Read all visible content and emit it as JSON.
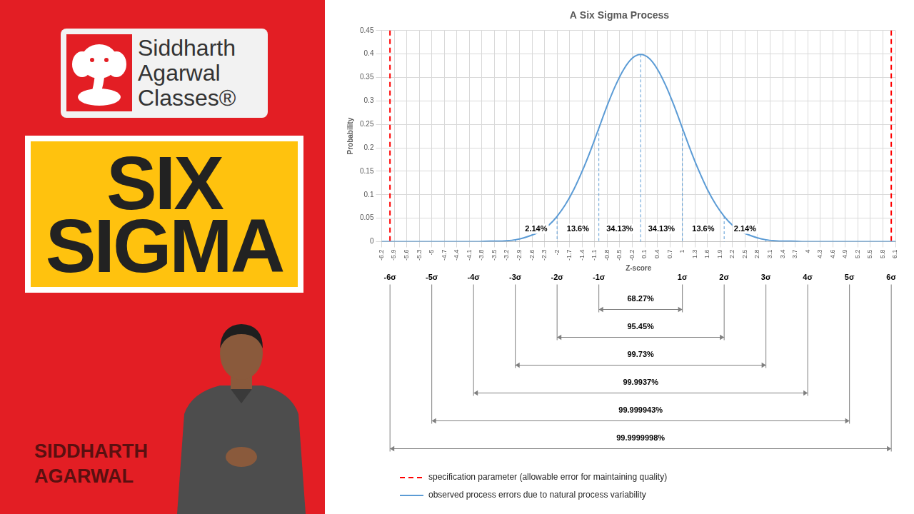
{
  "page": {
    "logo": [
      "Siddharth",
      "Agarwal",
      "Classes®"
    ],
    "headline": [
      "SIX",
      "SIGMA"
    ],
    "presenter": [
      "SIDDHARTH",
      "AGARWAL"
    ]
  },
  "chart_data": {
    "type": "line",
    "title": "A Six Sigma Process",
    "x_label": "Z-score",
    "y_label": "Probability",
    "x": [
      -6.2,
      -5,
      -4,
      -3.6,
      -3.4,
      -3.2,
      -3,
      -2.8,
      -2.6,
      -2.4,
      -2.2,
      -2,
      -1.8,
      -1.6,
      -1.4,
      -1.2,
      -1,
      -0.8,
      -0.6,
      -0.4,
      -0.2,
      0,
      0.2,
      0.4,
      0.6,
      0.8,
      1,
      1.2,
      1.4,
      1.6,
      1.8,
      2,
      2.2,
      2.4,
      2.6,
      2.8,
      3,
      3.2,
      3.4,
      3.6,
      4,
      5,
      6.1
    ],
    "series": [
      {
        "name": "observed process errors due to natural process variability",
        "color": "#5b9bd5",
        "line_style": "solid",
        "values": [
          0,
          0,
          0,
          0.001,
          0.001,
          0.002,
          0.004,
          0.008,
          0.014,
          0.022,
          0.035,
          0.054,
          0.079,
          0.111,
          0.15,
          0.194,
          0.242,
          0.29,
          0.333,
          0.368,
          0.391,
          0.399,
          0.391,
          0.368,
          0.333,
          0.29,
          0.242,
          0.194,
          0.15,
          0.111,
          0.079,
          0.054,
          0.035,
          0.022,
          0.014,
          0.008,
          0.004,
          0.002,
          0.001,
          0.001,
          0,
          0,
          0
        ]
      }
    ],
    "specification_limits": {
      "name": "specification parameter (allowable error for maintaining quality)",
      "color": "#ff0000",
      "line_style": "dashed",
      "values": [
        -6,
        6
      ]
    },
    "xlim": [
      -6.2,
      6.1
    ],
    "xticks": [
      -6.2,
      -5.9,
      -5.6,
      -5.3,
      -5,
      -4.7,
      -4.4,
      -4.1,
      -3.8,
      -3.5,
      -3.2,
      -2.9,
      -2.6,
      -2.3,
      -2,
      -1.7,
      -1.4,
      -1.1,
      -0.8,
      -0.5,
      -0.2,
      0.1,
      0.4,
      0.7,
      1,
      1.3,
      1.6,
      1.9,
      2.2,
      2.5,
      2.8,
      3.1,
      3.4,
      3.7,
      4,
      4.3,
      4.6,
      4.9,
      5.2,
      5.5,
      5.8,
      6.1
    ],
    "ylim": [
      0,
      0.45
    ],
    "yticks": [
      0,
      0.05,
      0.1,
      0.15,
      0.2,
      0.25,
      0.3,
      0.35,
      0.4,
      0.45
    ],
    "grid": true,
    "legend": "bottom",
    "sigma_lines": [
      -3,
      -2,
      -1,
      0,
      1,
      2,
      3
    ],
    "region_shares": [
      {
        "from": -3,
        "to": -2,
        "value": 2.14,
        "label": "2.14%"
      },
      {
        "from": -2,
        "to": -1,
        "value": 13.6,
        "label": "13.6%"
      },
      {
        "from": -1,
        "to": 0,
        "value": 34.13,
        "label": "34.13%"
      },
      {
        "from": 0,
        "to": 1,
        "value": 34.13,
        "label": "34.13%"
      },
      {
        "from": 1,
        "to": 2,
        "value": 13.6,
        "label": "13.6%"
      },
      {
        "from": 2,
        "to": 3,
        "value": 2.14,
        "label": "2.14%"
      }
    ],
    "sigma_levels": [
      {
        "value": -6,
        "label": "-6σ"
      },
      {
        "value": -5,
        "label": "-5σ"
      },
      {
        "value": -4,
        "label": "-4σ"
      },
      {
        "value": -3,
        "label": "-3σ"
      },
      {
        "value": -2,
        "label": "-2σ"
      },
      {
        "value": -1,
        "label": "-1σ"
      },
      {
        "value": 1,
        "label": "1σ"
      },
      {
        "value": 2,
        "label": "2σ"
      },
      {
        "value": 3,
        "label": "3σ"
      },
      {
        "value": 4,
        "label": "4σ"
      },
      {
        "value": 5,
        "label": "5σ"
      },
      {
        "value": 6,
        "label": "6σ"
      }
    ],
    "coverage": [
      {
        "from": -1,
        "to": 1,
        "value": 68.27,
        "label": "68.27%"
      },
      {
        "from": -2,
        "to": 2,
        "value": 95.45,
        "label": "95.45%"
      },
      {
        "from": -3,
        "to": 3,
        "value": 99.73,
        "label": "99.73%"
      },
      {
        "from": -4,
        "to": 4,
        "value": 99.9937,
        "label": "99.9937%"
      },
      {
        "from": -5,
        "to": 5,
        "value": 99.999943,
        "label": "99.999943%"
      },
      {
        "from": -6,
        "to": 6,
        "value": 99.9999998,
        "label": "99.9999998%"
      }
    ]
  }
}
